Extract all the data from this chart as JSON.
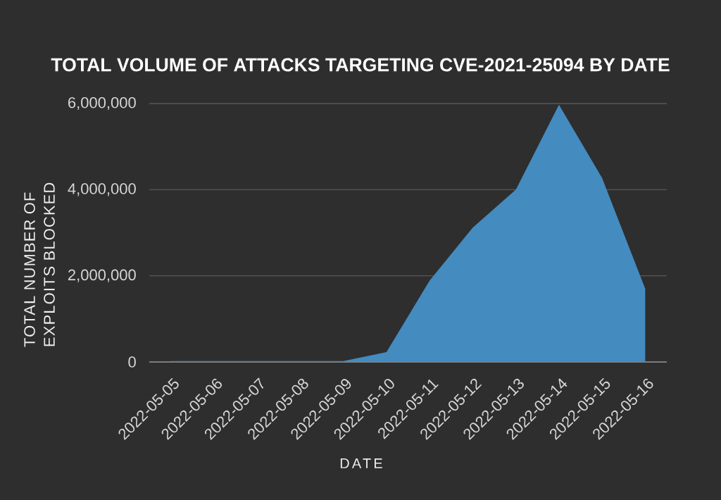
{
  "chart_data": {
    "type": "area",
    "title": "TOTAL VOLUME OF ATTACKS TARGETING CVE-2021-25094 BY DATE",
    "xlabel": "DATE",
    "ylabel": "TOTAL NUMBER OF EXPLOITS BLOCKED",
    "categories": [
      "2022-05-05",
      "2022-05-06",
      "2022-05-07",
      "2022-05-08",
      "2022-05-09",
      "2022-05-10",
      "2022-05-11",
      "2022-05-12",
      "2022-05-13",
      "2022-05-14",
      "2022-05-15",
      "2022-05-16"
    ],
    "values": [
      20000,
      20000,
      20000,
      20000,
      20000,
      230000,
      1890000,
      3120000,
      4000000,
      5970000,
      4270000,
      1700000
    ],
    "color": "#448bc0",
    "ylim": [
      0,
      6000000
    ],
    "yticks": [
      0,
      {
        "value": 2000000,
        "label": "2,000,000"
      },
      {
        "value": 4000000,
        "label": "4,000,000"
      },
      {
        "value": 6000000,
        "label": "6,000,000"
      }
    ],
    "grid": "y"
  }
}
